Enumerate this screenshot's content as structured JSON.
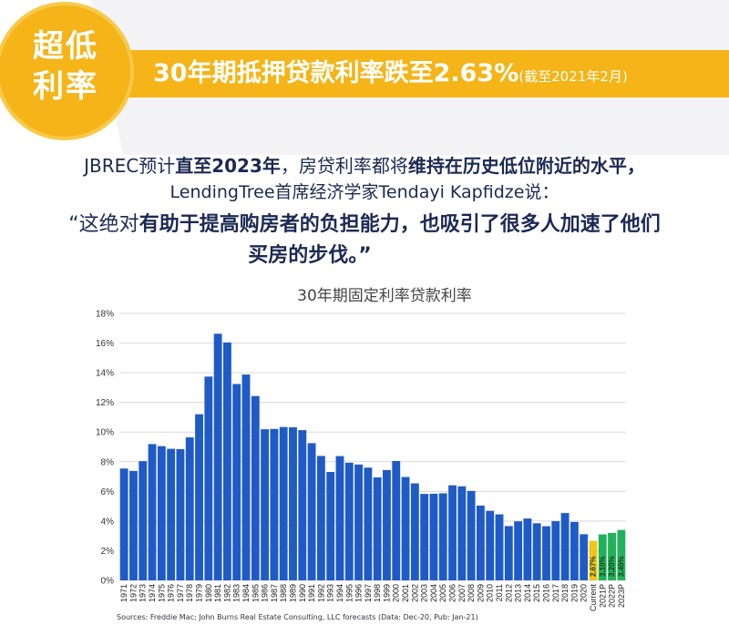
{
  "badge": {
    "line1": "超低",
    "line2": "利率"
  },
  "headline": {
    "main": "30年期抵押贷款利率跌至2.63%",
    "note": "(截至2021年2月)"
  },
  "text": {
    "line1_a": "JBREC预计",
    "line1_b": "直至2023年",
    "line1_c": "，房贷利率都将",
    "line1_d": "维持在历史低位附近的水平，",
    "line2": "LendingTree首席经济学家Tendayi Kapfidze说：",
    "line3_a": "“这绝对",
    "line3_b": "有助于提高购房者的负担能力，也吸引了很多人加速了他们",
    "line4": "买房的步伐。”"
  },
  "colors": {
    "accent": "#f5b417",
    "bar": "#1f5bc6",
    "current": "#f1c417",
    "forecast": "#1fb25a",
    "text": "#1b2a52"
  },
  "chart_data": {
    "type": "bar",
    "title": "30年期固定利率贷款利率",
    "categories": [
      "1971",
      "1972",
      "1973",
      "1974",
      "1975",
      "1976",
      "1977",
      "1978",
      "1979",
      "1980",
      "1981",
      "1982",
      "1983",
      "1984",
      "1985",
      "1986",
      "1987",
      "1988",
      "1989",
      "1990",
      "1991",
      "1992",
      "1993",
      "1994",
      "1995",
      "1996",
      "1997",
      "1998",
      "1999",
      "2000",
      "2001",
      "2002",
      "2003",
      "2004",
      "2005",
      "2006",
      "2007",
      "2008",
      "2009",
      "2010",
      "2011",
      "2012",
      "2013",
      "2014",
      "2015",
      "2016",
      "2017",
      "2018",
      "2019",
      "2020",
      "Current",
      "2021P",
      "2022P",
      "2023P"
    ],
    "values": [
      7.54,
      7.38,
      8.04,
      9.19,
      9.05,
      8.87,
      8.85,
      9.64,
      11.2,
      13.74,
      16.63,
      16.04,
      13.24,
      13.88,
      12.43,
      10.19,
      10.21,
      10.34,
      10.32,
      10.13,
      9.25,
      8.39,
      7.31,
      8.38,
      7.93,
      7.81,
      7.6,
      6.94,
      7.44,
      8.05,
      6.97,
      6.54,
      5.83,
      5.84,
      5.87,
      6.41,
      6.34,
      6.03,
      5.04,
      4.69,
      4.45,
      3.66,
      3.98,
      4.17,
      3.85,
      3.65,
      3.99,
      4.54,
      3.94,
      3.11,
      2.67,
      3.1,
      3.2,
      3.4
    ],
    "labels": [
      "",
      "",
      "",
      "",
      "",
      "",
      "",
      "",
      "",
      "",
      "",
      "",
      "",
      "",
      "",
      "",
      "",
      "",
      "",
      "",
      "",
      "",
      "",
      "",
      "",
      "",
      "",
      "",
      "",
      "",
      "",
      "",
      "",
      "",
      "",
      "",
      "",
      "",
      "",
      "",
      "",
      "",
      "",
      "",
      "",
      "",
      "",
      "",
      "",
      "",
      "2.67%",
      "3.10%",
      "3.20%",
      "3.40%"
    ],
    "ylim": [
      0,
      18
    ],
    "yticks": [
      "0%",
      "2%",
      "4%",
      "6%",
      "8%",
      "10%",
      "12%",
      "14%",
      "16%",
      "18%"
    ],
    "source": "Sources: Freddie Mac; John Burns Real Estate Consulting, LLC forecasts (Data: Dec-20, Pub: Jan-21)"
  }
}
